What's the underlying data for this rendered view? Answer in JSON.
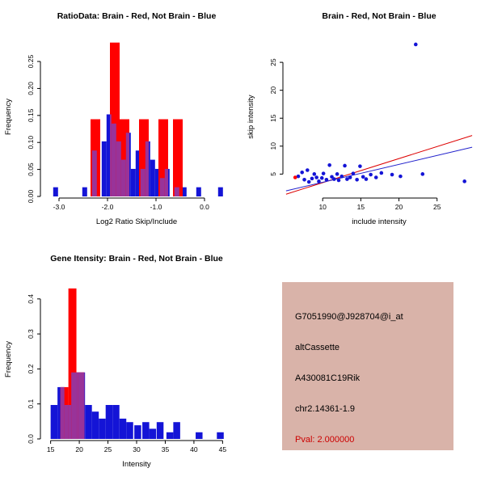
{
  "figure": {
    "background": "#ffffff",
    "colors": {
      "brain": "#ff0000",
      "not_brain": "#1414d6",
      "overlap": "#993399"
    }
  },
  "chart_data": [
    {
      "id": "ratio-histogram",
      "panel": "top-left",
      "type": "bar",
      "title": "RatioData: Brain - Red, Not Brain - Blue",
      "xlabel": "Log2 Ratio Skip/Include",
      "ylabel": "Frequency",
      "xlim": [
        -3.35,
        0.55
      ],
      "ylim": [
        0,
        0.295
      ],
      "xticks": [
        -3.0,
        -2.0,
        -1.0,
        0.0
      ],
      "xtick_labels": [
        "-3.0",
        "-2.0",
        "-1.0",
        "0.0"
      ],
      "yticks": [
        0,
        0.05,
        0.1,
        0.15,
        0.2,
        0.25
      ],
      "ytick_labels": [
        "0.00",
        "0.05",
        "0.10",
        "0.15",
        "0.20",
        "0.25"
      ],
      "series": [
        {
          "name": "not-brain",
          "color": "#1414d6",
          "bars": [
            {
              "x": -3.12,
              "w": 0.1,
              "h": 0.017
            },
            {
              "x": -2.52,
              "w": 0.1,
              "h": 0.017
            },
            {
              "x": -2.32,
              "w": 0.1,
              "h": 0.085
            },
            {
              "x": -2.12,
              "w": 0.1,
              "h": 0.102
            },
            {
              "x": -2.02,
              "w": 0.1,
              "h": 0.152
            },
            {
              "x": -1.92,
              "w": 0.1,
              "h": 0.135
            },
            {
              "x": -1.82,
              "w": 0.1,
              "h": 0.102
            },
            {
              "x": -1.72,
              "w": 0.1,
              "h": 0.068
            },
            {
              "x": -1.62,
              "w": 0.1,
              "h": 0.118
            },
            {
              "x": -1.52,
              "w": 0.1,
              "h": 0.051
            },
            {
              "x": -1.42,
              "w": 0.1,
              "h": 0.085
            },
            {
              "x": -1.32,
              "w": 0.1,
              "h": 0.051
            },
            {
              "x": -1.22,
              "w": 0.1,
              "h": 0.102
            },
            {
              "x": -1.12,
              "w": 0.1,
              "h": 0.068
            },
            {
              "x": -1.02,
              "w": 0.1,
              "h": 0.051
            },
            {
              "x": -0.92,
              "w": 0.1,
              "h": 0.034
            },
            {
              "x": -0.82,
              "w": 0.1,
              "h": 0.051
            },
            {
              "x": -0.62,
              "w": 0.1,
              "h": 0.017
            },
            {
              "x": -0.47,
              "w": 0.1,
              "h": 0.017
            },
            {
              "x": -0.17,
              "w": 0.1,
              "h": 0.017
            },
            {
              "x": 0.28,
              "w": 0.1,
              "h": 0.017
            }
          ]
        },
        {
          "name": "brain",
          "color": "#ff0000",
          "bars": [
            {
              "x": -2.35,
              "w": 0.2,
              "h": 0.143
            },
            {
              "x": -1.95,
              "w": 0.2,
              "h": 0.285
            },
            {
              "x": -1.75,
              "w": 0.2,
              "h": 0.143
            },
            {
              "x": -1.35,
              "w": 0.2,
              "h": 0.143
            },
            {
              "x": -0.95,
              "w": 0.2,
              "h": 0.143
            },
            {
              "x": -0.65,
              "w": 0.2,
              "h": 0.143
            }
          ]
        },
        {
          "name": "overlap",
          "color": "#993399",
          "bars": [
            {
              "x": -2.32,
              "w": 0.1,
              "h": 0.085
            },
            {
              "x": -1.95,
              "w": 0.03,
              "h": 0.152
            },
            {
              "x": -1.92,
              "w": 0.1,
              "h": 0.135
            },
            {
              "x": -1.82,
              "w": 0.07,
              "h": 0.102
            },
            {
              "x": -1.75,
              "w": 0.03,
              "h": 0.102
            },
            {
              "x": -1.72,
              "w": 0.1,
              "h": 0.068
            },
            {
              "x": -1.62,
              "w": 0.07,
              "h": 0.118
            },
            {
              "x": -1.32,
              "w": 0.1,
              "h": 0.051
            },
            {
              "x": -1.22,
              "w": 0.07,
              "h": 0.102
            },
            {
              "x": -0.92,
              "w": 0.1,
              "h": 0.034
            },
            {
              "x": -0.82,
              "w": 0.07,
              "h": 0.051
            },
            {
              "x": -0.62,
              "w": 0.1,
              "h": 0.017
            }
          ]
        }
      ]
    },
    {
      "id": "intensity-scatter",
      "panel": "top-right",
      "type": "scatter",
      "title": "Brain - Red, Not Brain - Blue",
      "xlabel": "include intensity",
      "ylabel": "skip intensity",
      "xlim": [
        5.0,
        29.8
      ],
      "ylim": [
        1.0,
        29.5
      ],
      "xticks": [
        10,
        15,
        20,
        25
      ],
      "xtick_labels": [
        "10",
        "15",
        "20",
        "25"
      ],
      "yticks": [
        5,
        10,
        15,
        20,
        25
      ],
      "ytick_labels": [
        "5",
        "10",
        "15",
        "20",
        "25"
      ],
      "lines": [
        {
          "name": "fit-brain",
          "color": "#dd0000",
          "x1": 5.2,
          "y1": 1.4,
          "x2": 29.6,
          "y2": 11.9
        },
        {
          "name": "fit-not-brain",
          "color": "#2222cc",
          "x1": 5.2,
          "y1": 2.0,
          "x2": 29.6,
          "y2": 9.8
        }
      ],
      "series": [
        {
          "name": "not-brain",
          "color": "#1414d6",
          "points": [
            [
              6.8,
              4.6
            ],
            [
              7.3,
              5.3
            ],
            [
              7.6,
              4.0
            ],
            [
              8.0,
              5.7
            ],
            [
              8.2,
              3.6
            ],
            [
              8.6,
              4.2
            ],
            [
              8.9,
              5.0
            ],
            [
              9.2,
              4.4
            ],
            [
              9.5,
              3.7
            ],
            [
              9.9,
              4.3
            ],
            [
              10.1,
              5.1
            ],
            [
              10.5,
              4.0
            ],
            [
              10.9,
              6.6
            ],
            [
              11.2,
              4.5
            ],
            [
              11.5,
              4.1
            ],
            [
              11.9,
              5.0
            ],
            [
              12.1,
              3.9
            ],
            [
              12.5,
              4.6
            ],
            [
              12.9,
              6.5
            ],
            [
              13.2,
              4.1
            ],
            [
              13.6,
              4.4
            ],
            [
              14.0,
              5.1
            ],
            [
              14.5,
              4.0
            ],
            [
              14.9,
              6.4
            ],
            [
              15.3,
              4.5
            ],
            [
              15.7,
              4.1
            ],
            [
              16.3,
              4.9
            ],
            [
              17.0,
              4.4
            ],
            [
              17.7,
              5.2
            ],
            [
              19.1,
              4.9
            ],
            [
              20.2,
              4.6
            ],
            [
              22.2,
              28.2
            ],
            [
              23.1,
              5.0
            ],
            [
              28.6,
              3.7
            ]
          ]
        },
        {
          "name": "brain",
          "color": "#ff0000",
          "points": [
            [
              6.4,
              4.4
            ]
          ]
        }
      ]
    },
    {
      "id": "gene-intensity-histogram",
      "panel": "bottom-left",
      "type": "bar",
      "title": "Gene Itensity: Brain - Red, Not Brain - Blue",
      "xlabel": "Intensity",
      "ylabel": "Frequency",
      "xlim": [
        13.5,
        46.5
      ],
      "ylim": [
        0,
        0.455
      ],
      "xticks": [
        15,
        20,
        25,
        30,
        35,
        40,
        45
      ],
      "xtick_labels": [
        "15",
        "20",
        "25",
        "30",
        "35",
        "40",
        "45"
      ],
      "yticks": [
        0,
        0.1,
        0.2,
        0.3,
        0.4
      ],
      "ytick_labels": [
        "0.0",
        "0.1",
        "0.2",
        "0.3",
        "0.4"
      ],
      "series": [
        {
          "name": "not-brain",
          "color": "#1414d6",
          "bars": [
            {
              "x": 15.0,
              "w": 1.2,
              "h": 0.097
            },
            {
              "x": 16.2,
              "w": 1.2,
              "h": 0.148
            },
            {
              "x": 17.4,
              "w": 1.2,
              "h": 0.097
            },
            {
              "x": 18.6,
              "w": 1.2,
              "h": 0.19
            },
            {
              "x": 19.8,
              "w": 1.2,
              "h": 0.19
            },
            {
              "x": 21.0,
              "w": 1.2,
              "h": 0.097
            },
            {
              "x": 22.2,
              "w": 1.2,
              "h": 0.078
            },
            {
              "x": 23.4,
              "w": 1.2,
              "h": 0.058
            },
            {
              "x": 24.6,
              "w": 1.2,
              "h": 0.097
            },
            {
              "x": 25.8,
              "w": 1.2,
              "h": 0.097
            },
            {
              "x": 27.0,
              "w": 1.2,
              "h": 0.058
            },
            {
              "x": 28.2,
              "w": 1.2,
              "h": 0.048
            },
            {
              "x": 29.6,
              "w": 1.2,
              "h": 0.039
            },
            {
              "x": 31.0,
              "w": 1.2,
              "h": 0.048
            },
            {
              "x": 32.2,
              "w": 1.2,
              "h": 0.029
            },
            {
              "x": 33.5,
              "w": 1.2,
              "h": 0.048
            },
            {
              "x": 35.2,
              "w": 1.2,
              "h": 0.019
            },
            {
              "x": 36.4,
              "w": 1.2,
              "h": 0.048
            },
            {
              "x": 40.3,
              "w": 1.2,
              "h": 0.019
            },
            {
              "x": 44.0,
              "w": 1.2,
              "h": 0.019
            }
          ]
        },
        {
          "name": "brain",
          "color": "#ff0000",
          "bars": [
            {
              "x": 16.7,
              "w": 1.4,
              "h": 0.148
            },
            {
              "x": 18.1,
              "w": 1.4,
              "h": 0.43
            },
            {
              "x": 19.5,
              "w": 1.4,
              "h": 0.19
            }
          ]
        },
        {
          "name": "overlap",
          "color": "#993399",
          "bars": [
            {
              "x": 16.7,
              "w": 0.7,
              "h": 0.148
            },
            {
              "x": 17.4,
              "w": 0.7,
              "h": 0.097
            },
            {
              "x": 18.1,
              "w": 0.5,
              "h": 0.097
            },
            {
              "x": 18.6,
              "w": 0.9,
              "h": 0.19
            },
            {
              "x": 19.5,
              "w": 0.3,
              "h": 0.19
            },
            {
              "x": 19.8,
              "w": 1.1,
              "h": 0.19
            }
          ]
        }
      ]
    }
  ],
  "info_panel": {
    "background": "#d9b3a9",
    "lines": [
      {
        "text": "G7051990@J928704@i_at",
        "color": "#000000"
      },
      {
        "text": "altCassette",
        "color": "#000000"
      },
      {
        "text": "A430081C19Rik",
        "color": "#000000"
      },
      {
        "text": "chr2.14361-1.9",
        "color": "#000000"
      },
      {
        "text": "Pval: 2.000000",
        "color": "#cc0000"
      }
    ]
  }
}
